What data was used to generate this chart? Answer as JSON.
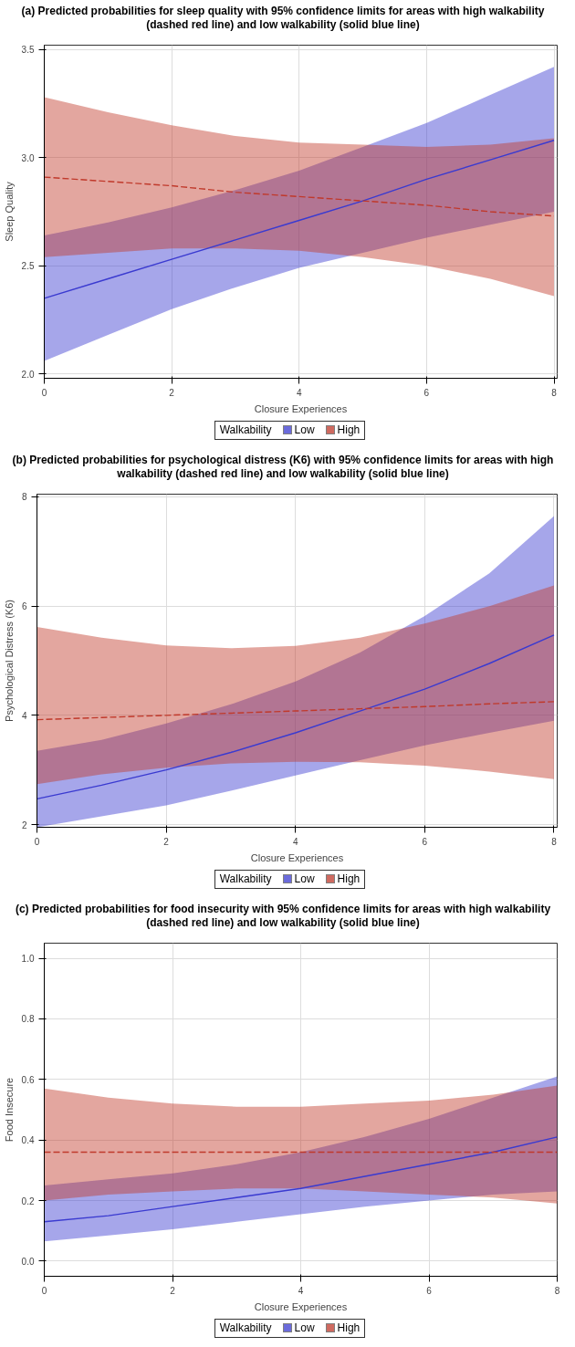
{
  "chart_data": [
    {
      "type": "line",
      "title": "(a) Predicted probabilities for sleep quality with 95% confidence limits for areas with high walkability (dashed red line) and low walkability (solid blue line)",
      "xlabel": "Closure Experiences",
      "ylabel": "Sleep Quality",
      "legend_title": "Walkability",
      "legend": "bottom",
      "grid": true,
      "x": [
        0,
        1,
        2,
        3,
        4,
        5,
        6,
        7,
        8
      ],
      "xlim": [
        0,
        8.05
      ],
      "xticks": [
        0,
        2,
        4,
        6,
        8
      ],
      "ylim": [
        1.98,
        3.52
      ],
      "yticks": [
        {
          "value": 2,
          "label": "2.0"
        },
        {
          "value": 2.5,
          "label": "2.5"
        },
        {
          "value": 3,
          "label": "3.0"
        },
        {
          "value": 3.5,
          "label": "3.5"
        }
      ],
      "series": [
        {
          "name": "Low",
          "color": "#3a3ad0",
          "line_style": "solid",
          "values": [
            2.35,
            2.44,
            2.53,
            2.62,
            2.71,
            2.8,
            2.9,
            2.99,
            3.08
          ],
          "lower": [
            2.06,
            2.18,
            2.3,
            2.4,
            2.49,
            2.56,
            2.63,
            2.69,
            2.75
          ],
          "upper": [
            2.64,
            2.7,
            2.77,
            2.85,
            2.94,
            3.05,
            3.16,
            3.29,
            3.42
          ]
        },
        {
          "name": "High",
          "color": "#c0392b",
          "line_style": "dashed",
          "values": [
            2.91,
            2.89,
            2.87,
            2.84,
            2.82,
            2.8,
            2.78,
            2.75,
            2.73
          ],
          "lower": [
            2.54,
            2.56,
            2.58,
            2.58,
            2.57,
            2.54,
            2.5,
            2.44,
            2.36
          ],
          "upper": [
            3.28,
            3.21,
            3.15,
            3.1,
            3.07,
            3.06,
            3.05,
            3.06,
            3.09
          ]
        }
      ]
    },
    {
      "type": "line",
      "title": "(b) Predicted probabilities for psychological distress (K6) with 95% confidence limits for areas with high walkability (dashed red line) and low walkability (solid blue line)",
      "xlabel": "Closure Experiences",
      "ylabel": "Psychological Distress (K6)",
      "legend_title": "Walkability",
      "legend": "bottom",
      "grid": true,
      "x": [
        0,
        1,
        2,
        3,
        4,
        5,
        6,
        7,
        8
      ],
      "xlim": [
        0,
        8.05
      ],
      "xticks": [
        0,
        2,
        4,
        6,
        8
      ],
      "ylim": [
        1.95,
        8.05
      ],
      "yticks": [
        2,
        4,
        6,
        8
      ],
      "series": [
        {
          "name": "Low",
          "color": "#3a3ad0",
          "line_style": "solid",
          "values": [
            2.47,
            2.72,
            3.0,
            3.32,
            3.68,
            4.08,
            4.48,
            4.95,
            5.47
          ],
          "lower": [
            1.95,
            2.15,
            2.35,
            2.62,
            2.9,
            3.18,
            3.45,
            3.68,
            3.9
          ],
          "upper": [
            3.35,
            3.55,
            3.85,
            4.2,
            4.62,
            5.15,
            5.82,
            6.6,
            7.65
          ]
        },
        {
          "name": "High",
          "color": "#c0392b",
          "line_style": "dashed",
          "values": [
            3.92,
            3.96,
            4.0,
            4.04,
            4.08,
            4.12,
            4.16,
            4.21,
            4.25
          ],
          "lower": [
            2.74,
            2.92,
            3.04,
            3.12,
            3.15,
            3.14,
            3.08,
            2.97,
            2.83
          ],
          "upper": [
            5.62,
            5.42,
            5.28,
            5.23,
            5.27,
            5.42,
            5.68,
            6.0,
            6.38
          ]
        }
      ]
    },
    {
      "type": "line",
      "title": "(c) Predicted probabilities for food insecurity with 95% confidence limits for areas with high walkability (dashed red line) and low walkability (solid blue line)",
      "xlabel": "Closure Experiences",
      "ylabel": "Food Insecure",
      "legend_title": "Walkability",
      "legend": "bottom",
      "grid": true,
      "x": [
        0,
        1,
        2,
        3,
        4,
        5,
        6,
        7,
        8
      ],
      "xlim": [
        0,
        8
      ],
      "xticks": [
        0,
        2,
        4,
        6,
        8
      ],
      "ylim": [
        -0.05,
        1.05
      ],
      "yticks": [
        {
          "value": 0,
          "label": "0.0"
        },
        {
          "value": 0.2,
          "label": "0.2"
        },
        {
          "value": 0.4,
          "label": "0.4"
        },
        {
          "value": 0.6,
          "label": "0.6"
        },
        {
          "value": 0.8,
          "label": "0.8"
        },
        {
          "value": 1,
          "label": "1.0"
        }
      ],
      "series": [
        {
          "name": "Low",
          "color": "#3a3ad0",
          "line_style": "solid",
          "values": [
            0.13,
            0.15,
            0.18,
            0.21,
            0.24,
            0.28,
            0.32,
            0.36,
            0.41
          ],
          "lower": [
            0.065,
            0.085,
            0.105,
            0.13,
            0.155,
            0.18,
            0.2,
            0.22,
            0.23
          ],
          "upper": [
            0.25,
            0.27,
            0.29,
            0.32,
            0.36,
            0.41,
            0.47,
            0.54,
            0.61
          ]
        },
        {
          "name": "High",
          "color": "#c0392b",
          "line_style": "dashed",
          "values": [
            0.36,
            0.36,
            0.36,
            0.36,
            0.36,
            0.36,
            0.36,
            0.36,
            0.36
          ],
          "lower": [
            0.2,
            0.22,
            0.23,
            0.24,
            0.24,
            0.23,
            0.22,
            0.21,
            0.19
          ],
          "upper": [
            0.57,
            0.54,
            0.52,
            0.51,
            0.51,
            0.52,
            0.53,
            0.55,
            0.58
          ]
        }
      ]
    }
  ]
}
